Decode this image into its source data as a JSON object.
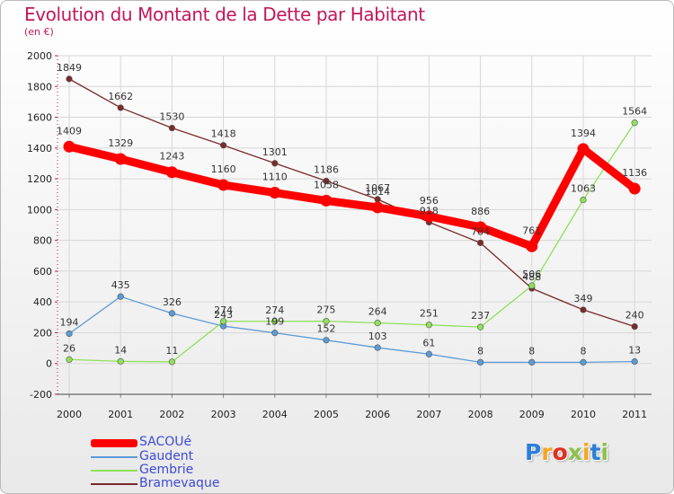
{
  "title": "Evolution du Montant de la Dette par Habitant",
  "unit": "(en €)",
  "logo": {
    "text": "Proxiti",
    "colors": [
      "#2b7fd8",
      "#f5a623",
      "#e0301e",
      "#8bc34a",
      "#f5a623",
      "#2b7fd8",
      "#8bc34a"
    ]
  },
  "chart_data": {
    "type": "line",
    "title": "Evolution du Montant de la Dette par Habitant",
    "ylabel": "(en €)",
    "xlabel": "",
    "ylim": [
      -200,
      2000
    ],
    "yticks": [
      "-200",
      "0",
      "200",
      "400",
      "600",
      "800",
      "1000",
      "1200",
      "1400",
      "1600",
      "1800",
      "2000"
    ],
    "yticks_values": [
      -200,
      0,
      200,
      400,
      600,
      800,
      1000,
      1200,
      1400,
      1600,
      1800,
      2000
    ],
    "grid": true,
    "legend_position": "bottom-left",
    "x": [
      "2000",
      "2001",
      "2002",
      "2003",
      "2004",
      "2005",
      "2006",
      "2007",
      "2008",
      "2009",
      "2010",
      "2011"
    ],
    "series": [
      {
        "name": "SACOUé",
        "color": "#ff0000",
        "emphasis": true,
        "values": [
          1409,
          1329,
          1243,
          1160,
          1110,
          1058,
          1014,
          956,
          886,
          761,
          1394,
          1136
        ],
        "labels": [
          "1409",
          "1329",
          "1243",
          "1160",
          "1110",
          "1058",
          "1014",
          "956",
          "886",
          "761",
          "1394",
          "1136"
        ]
      },
      {
        "name": "Gaudent",
        "color": "#5b9bd5",
        "emphasis": false,
        "values": [
          194,
          435,
          326,
          243,
          199,
          152,
          103,
          61,
          8,
          8,
          8,
          13
        ],
        "labels": [
          "194",
          "435",
          "326",
          "243",
          "199",
          "152",
          "103",
          "61",
          "8",
          "8",
          "8",
          "13"
        ]
      },
      {
        "name": "Gembrie",
        "color": "#8fe05a",
        "emphasis": false,
        "values": [
          26,
          14,
          11,
          274,
          274,
          275,
          264,
          251,
          237,
          506,
          1063,
          1564
        ],
        "labels": [
          "26",
          "14",
          "11",
          "274",
          "274",
          "275",
          "264",
          "251",
          "237",
          "506",
          "1063",
          "1564"
        ]
      },
      {
        "name": "Bramevaque",
        "color": "#7a2a2a",
        "emphasis": false,
        "values": [
          1849,
          1662,
          1530,
          1418,
          1301,
          1186,
          1067,
          918,
          784,
          488,
          349,
          240
        ],
        "labels": [
          "1849",
          "1662",
          "1530",
          "1418",
          "1301",
          "1186",
          "1067",
          "918",
          "784",
          "488",
          "349",
          "240"
        ]
      }
    ]
  }
}
